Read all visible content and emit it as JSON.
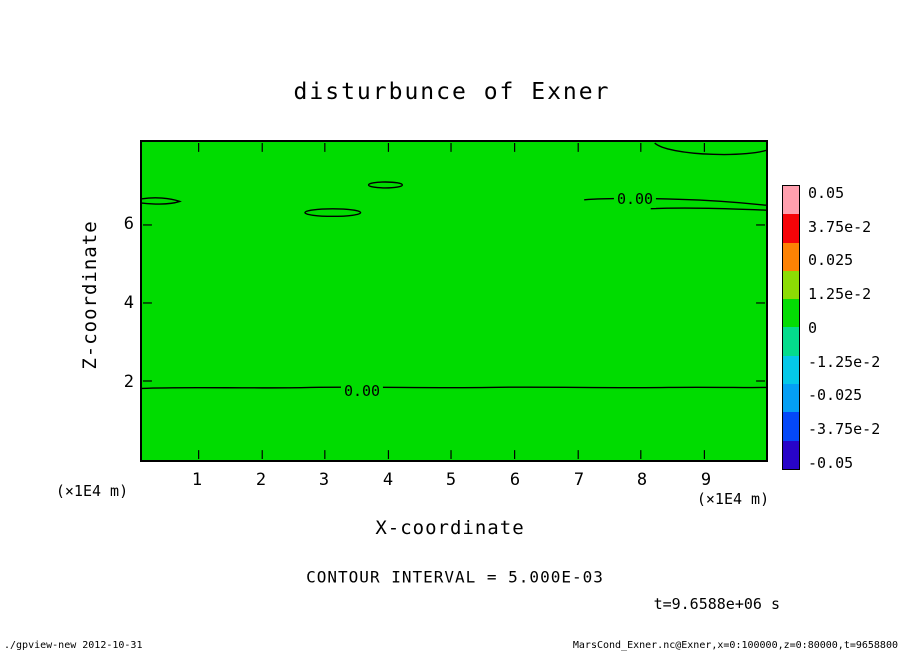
{
  "title": "disturbunce of Exner",
  "plot": {
    "x_label": "X-coordinate",
    "y_label": "Z-coordinate",
    "x_unit_left": "(×1E4 m)",
    "x_unit_right": "(×1E4 m)",
    "x_ticks": [
      "1",
      "2",
      "3",
      "4",
      "5",
      "6",
      "7",
      "8",
      "9"
    ],
    "y_ticks": [
      "6",
      "4",
      "2"
    ],
    "fill_color": "#00dc00",
    "contour_label": "0.00"
  },
  "colorbar": {
    "labels": [
      "0.05",
      "3.75e-2",
      "0.025",
      "1.25e-2",
      "0",
      "-1.25e-2",
      "-0.025",
      "-3.75e-2",
      "-0.05"
    ],
    "colors": [
      "#ff9fae",
      "#f60408",
      "#fd8204",
      "#8cdc04",
      "#04dd04",
      "#04dc8c",
      "#04c8e8",
      "#049ff4",
      "#0448f8",
      "#2804c8"
    ]
  },
  "annotations": {
    "contour_interval": "CONTOUR INTERVAL = 5.000E-03",
    "time": "t=9.6588e+06 s"
  },
  "footer": {
    "left": "./gpview-new  2012-10-31",
    "right": "MarsCond_Exner.nc@Exner,x=0:100000,z=0:80000,t=9658800"
  },
  "chart_data": {
    "type": "heatmap",
    "title": "disturbunce of Exner",
    "xlabel": "X-coordinate (×1E4 m)",
    "ylabel": "Z-coordinate (×1E4 m)",
    "xlim": [
      0,
      10
    ],
    "ylim": [
      0,
      8.2
    ],
    "contour_interval": 0.005,
    "colorbar_levels": [
      0.05,
      0.0375,
      0.025,
      0.0125,
      0,
      -0.0125,
      -0.025,
      -0.0375,
      -0.05
    ],
    "colorbar_position": "right",
    "field_summary": "Exner disturbance field is approximately 0 over the entire domain (uniform green band of the palette); only 0.00 contours appear",
    "zero_contours": [
      {
        "shape": "horizontal line",
        "z": 1.9,
        "x_range": [
          0,
          10
        ],
        "label": "0.00"
      },
      {
        "shape": "horizontal line",
        "z": 6.85,
        "x_range": [
          7.1,
          10
        ],
        "label": "0.00"
      },
      {
        "shape": "closed loop",
        "center_x": 3.05,
        "center_z": 6.3
      },
      {
        "shape": "closed loop",
        "center_x": 3.9,
        "center_z": 7.05
      },
      {
        "shape": "edge loop on left boundary",
        "center_x": 0.25,
        "center_z": 6.6
      },
      {
        "shape": "loop along top boundary",
        "x_range": [
          8.1,
          10
        ],
        "z": 7.9
      }
    ],
    "annotations": [
      "CONTOUR INTERVAL = 5.000E-03",
      "t=9.6588e+06 s"
    ]
  }
}
